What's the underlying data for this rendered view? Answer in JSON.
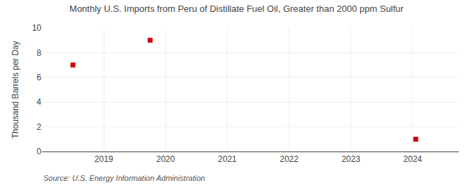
{
  "chart_data": {
    "type": "scatter",
    "title": "Monthly U.S. Imports from Peru of Distillate Fuel Oil, Greater than 2000 ppm Sulfur",
    "ylabel": "Thousand Barrels per Day",
    "annotations": [
      "Source: U.S. Energy Information Administration"
    ],
    "x": [
      2018.5,
      2019.75,
      2024.05
    ],
    "values": [
      7.0,
      9.0,
      1.0
    ],
    "color": "#cc0000",
    "marker": "square",
    "xlim": [
      2018.0,
      2024.75
    ],
    "ylim": [
      0,
      10
    ],
    "xticks": [
      2019,
      2020,
      2021,
      2022,
      2023,
      2024
    ],
    "yticks": [
      0,
      2,
      4,
      6,
      8,
      10
    ],
    "grid": true
  }
}
